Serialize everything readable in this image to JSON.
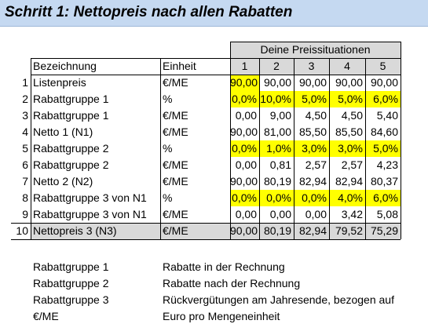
{
  "title": "Schritt 1: Nettopreis nach allen Rabatten",
  "table": {
    "group_header": "Deine Preissituationen",
    "col_bezeichnung": "Bezeichnung",
    "col_einheit": "Einheit",
    "situations": [
      "1",
      "2",
      "3",
      "4",
      "5"
    ],
    "rows": [
      {
        "nr": "1",
        "label": "Listenpreis",
        "unit": "€/ME",
        "values": [
          "90,00",
          "90,00",
          "90,00",
          "90,00",
          "90,00"
        ]
      },
      {
        "nr": "2",
        "label": "Rabattgruppe 1",
        "unit": "%",
        "values": [
          "0,0%",
          "10,0%",
          "5,0%",
          "5,0%",
          "6,0%"
        ]
      },
      {
        "nr": "3",
        "label": "Rabattgruppe 1",
        "unit": "€/ME",
        "values": [
          "0,00",
          "9,00",
          "4,50",
          "4,50",
          "5,40"
        ]
      },
      {
        "nr": "4",
        "label": "Netto 1 (N1)",
        "unit": "€/ME",
        "values": [
          "90,00",
          "81,00",
          "85,50",
          "85,50",
          "84,60"
        ]
      },
      {
        "nr": "5",
        "label": "Rabattgruppe 2",
        "unit": "%",
        "values": [
          "0,0%",
          "1,0%",
          "3,0%",
          "3,0%",
          "5,0%"
        ]
      },
      {
        "nr": "6",
        "label": "Rabattgruppe 2",
        "unit": "€/ME",
        "values": [
          "0,00",
          "0,81",
          "2,57",
          "2,57",
          "4,23"
        ]
      },
      {
        "nr": "7",
        "label": "Netto 2 (N2)",
        "unit": "€/ME",
        "values": [
          "90,00",
          "80,19",
          "82,94",
          "82,94",
          "80,37"
        ]
      },
      {
        "nr": "8",
        "label": "Rabattgruppe 3 von N1",
        "unit": "%",
        "values": [
          "0,0%",
          "0,0%",
          "0,0%",
          "4,0%",
          "6,0%"
        ]
      },
      {
        "nr": "9",
        "label": "Rabattgruppe 3 von N1",
        "unit": "€/ME",
        "values": [
          "0,00",
          "0,00",
          "0,00",
          "3,42",
          "5,08"
        ]
      },
      {
        "nr": "10",
        "label": "Nettopreis 3 (N3)",
        "unit": "€/ME",
        "values": [
          "90,00",
          "80,19",
          "82,94",
          "79,52",
          "75,29"
        ]
      }
    ]
  },
  "legend": [
    {
      "term": "Rabattgruppe 1",
      "desc": "Rabatte in der Rechnung"
    },
    {
      "term": "Rabattgruppe 2",
      "desc": "Rabatte nach der Rechnung"
    },
    {
      "term": "Rabattgruppe 3",
      "desc": "Rückvergütungen am Jahresende, bezogen auf"
    },
    {
      "term": "€/ME",
      "desc": "Euro pro Mengeneinheit"
    }
  ],
  "colors": {
    "title_background": "#c5d9f1",
    "input_highlight": "#ffff00",
    "header_gray": "#d9d9d9",
    "total_row_gray": "#d9d9d9"
  }
}
